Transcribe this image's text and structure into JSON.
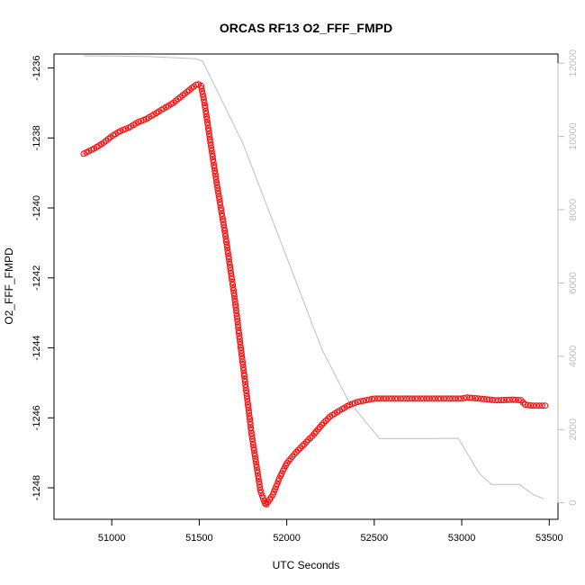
{
  "chart_data": {
    "type": "line",
    "title": "ORCAS RF13 O2_FFF_FMPD",
    "xlabel": "UTC Seconds",
    "ylabel": "O2_FFF_FMPD",
    "xlim": [
      50670,
      53550
    ],
    "ylim": [
      -1248.9,
      -1235.6
    ],
    "y2lim": [
      -450,
      12250
    ],
    "x_ticks": [
      51000,
      51500,
      52000,
      52500,
      53000,
      53500
    ],
    "y_ticks": [
      -1248,
      -1246,
      -1244,
      -1242,
      -1240,
      -1238,
      -1236
    ],
    "y2_ticks": [
      0,
      2000,
      4000,
      6000,
      8000,
      10000,
      12000
    ],
    "grid": false,
    "series": [
      {
        "axis": "left",
        "color": "#ff0000",
        "marker": "open-circle",
        "line": "dashed",
        "points": [
          [
            50840,
            -1238.45
          ],
          [
            50900,
            -1238.3
          ],
          [
            50950,
            -1238.15
          ],
          [
            51000,
            -1237.95
          ],
          [
            51050,
            -1237.8
          ],
          [
            51100,
            -1237.7
          ],
          [
            51150,
            -1237.55
          ],
          [
            51200,
            -1237.45
          ],
          [
            51250,
            -1237.3
          ],
          [
            51300,
            -1237.15
          ],
          [
            51350,
            -1237.0
          ],
          [
            51400,
            -1236.8
          ],
          [
            51450,
            -1236.6
          ],
          [
            51490,
            -1236.45
          ],
          [
            51510,
            -1236.5
          ],
          [
            51530,
            -1237.0
          ],
          [
            51560,
            -1238.0
          ],
          [
            51600,
            -1239.3
          ],
          [
            51650,
            -1240.8
          ],
          [
            51700,
            -1242.5
          ],
          [
            51750,
            -1244.5
          ],
          [
            51800,
            -1246.5
          ],
          [
            51850,
            -1248.1
          ],
          [
            51880,
            -1248.5
          ],
          [
            51920,
            -1248.2
          ],
          [
            51960,
            -1247.7
          ],
          [
            52000,
            -1247.3
          ],
          [
            52050,
            -1247.0
          ],
          [
            52100,
            -1246.75
          ],
          [
            52150,
            -1246.5
          ],
          [
            52200,
            -1246.2
          ],
          [
            52250,
            -1245.95
          ],
          [
            52300,
            -1245.8
          ],
          [
            52350,
            -1245.65
          ],
          [
            52400,
            -1245.55
          ],
          [
            52450,
            -1245.5
          ],
          [
            52500,
            -1245.45
          ],
          [
            52600,
            -1245.45
          ],
          [
            52700,
            -1245.45
          ],
          [
            52800,
            -1245.45
          ],
          [
            52900,
            -1245.45
          ],
          [
            53000,
            -1245.45
          ],
          [
            53030,
            -1245.42
          ],
          [
            53100,
            -1245.45
          ],
          [
            53200,
            -1245.5
          ],
          [
            53300,
            -1245.48
          ],
          [
            53340,
            -1245.5
          ],
          [
            53360,
            -1245.62
          ],
          [
            53400,
            -1245.65
          ],
          [
            53480,
            -1245.65
          ]
        ]
      },
      {
        "axis": "right",
        "color": "#bebebe",
        "marker": "none",
        "line": "solid",
        "points": [
          [
            50840,
            12200
          ],
          [
            51200,
            12180
          ],
          [
            51480,
            12120
          ],
          [
            51520,
            12050
          ],
          [
            51750,
            9800
          ],
          [
            52000,
            6700
          ],
          [
            52200,
            4200
          ],
          [
            52350,
            2800
          ],
          [
            52530,
            1750
          ],
          [
            52650,
            1750
          ],
          [
            52800,
            1750
          ],
          [
            52980,
            1760
          ],
          [
            53100,
            800
          ],
          [
            53170,
            500
          ],
          [
            53330,
            500
          ],
          [
            53400,
            250
          ],
          [
            53470,
            100
          ]
        ]
      }
    ]
  }
}
